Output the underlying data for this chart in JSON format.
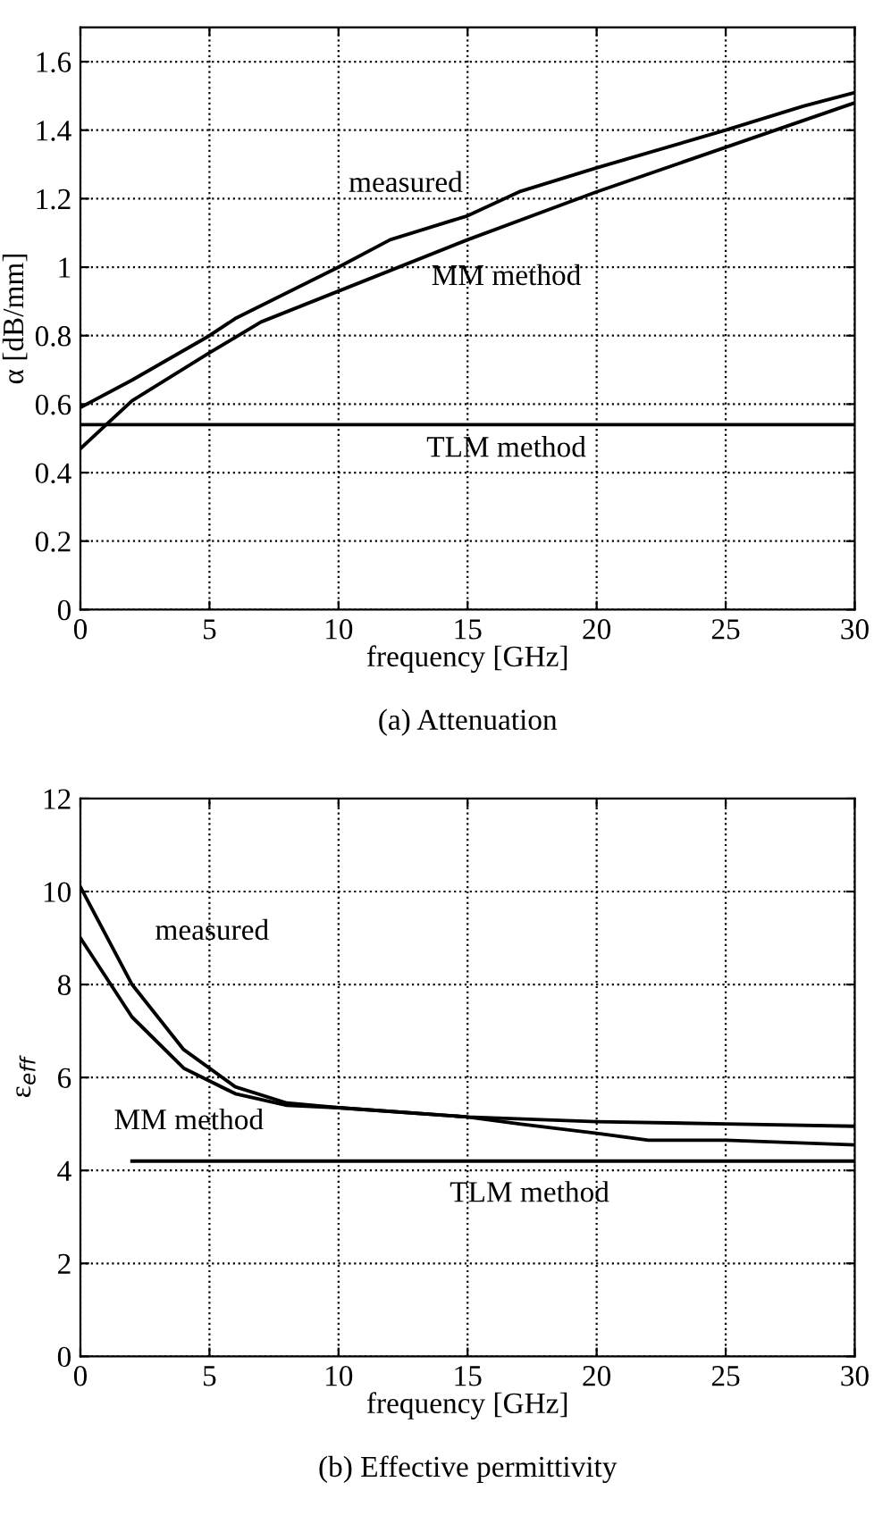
{
  "chart_data": [
    {
      "type": "line",
      "title": "(a) Attenuation",
      "xlabel": "frequency [GHz]",
      "ylabel": "α [dB/mm]",
      "series": [
        {
          "name": "measured",
          "color": "#000000",
          "x": [
            0,
            2,
            5,
            6,
            10,
            12,
            15,
            17,
            20,
            25,
            28,
            30
          ],
          "values": [
            0.59,
            0.67,
            0.8,
            0.85,
            1.0,
            1.08,
            1.15,
            1.22,
            1.29,
            1.4,
            1.47,
            1.51
          ]
        },
        {
          "name": "MM method",
          "color": "#000000",
          "x": [
            0,
            1,
            2,
            5,
            7,
            10,
            15,
            20,
            25,
            30
          ],
          "values": [
            0.47,
            0.54,
            0.61,
            0.75,
            0.84,
            0.93,
            1.08,
            1.22,
            1.35,
            1.48
          ]
        },
        {
          "name": "TLM method",
          "color": "#000000",
          "x": [
            0,
            30
          ],
          "values": [
            0.54,
            0.54
          ]
        }
      ],
      "xlim": [
        0,
        30
      ],
      "ylim": [
        0,
        1.7
      ],
      "xticks": [
        0,
        5,
        10,
        15,
        20,
        25,
        30
      ],
      "yticks": [
        0,
        0.2,
        0.4,
        0.6,
        0.8,
        1,
        1.2,
        1.4,
        1.6
      ],
      "grid": true,
      "line_style": "solid",
      "marker": "none",
      "legend": false
    },
    {
      "type": "line",
      "title": "(b) Effective permittivity",
      "xlabel": "frequency [GHz]",
      "ylabel": "ε$_{eff}$",
      "series": [
        {
          "name": "measured",
          "color": "#000000",
          "x": [
            0,
            2,
            4,
            6,
            8,
            10,
            15,
            17,
            20,
            22,
            25,
            30
          ],
          "values": [
            10.1,
            8.0,
            6.6,
            5.8,
            5.45,
            5.35,
            5.15,
            5.0,
            4.8,
            4.65,
            4.65,
            4.55
          ]
        },
        {
          "name": "MM method",
          "color": "#000000",
          "x": [
            0,
            2,
            4,
            6,
            8,
            10,
            15,
            20,
            25,
            30
          ],
          "values": [
            9.0,
            7.3,
            6.2,
            5.65,
            5.4,
            5.35,
            5.15,
            5.05,
            5.0,
            4.95
          ]
        },
        {
          "name": "TLM method",
          "color": "#000000",
          "x": [
            2,
            30
          ],
          "values": [
            4.2,
            4.2
          ]
        }
      ],
      "xlim": [
        0,
        30
      ],
      "ylim": [
        0,
        12
      ],
      "xticks": [
        0,
        5,
        10,
        15,
        20,
        25,
        30
      ],
      "yticks": [
        0,
        2,
        4,
        6,
        8,
        10,
        12
      ],
      "grid": true,
      "line_style": "solid",
      "marker": "none",
      "legend": false
    }
  ]
}
